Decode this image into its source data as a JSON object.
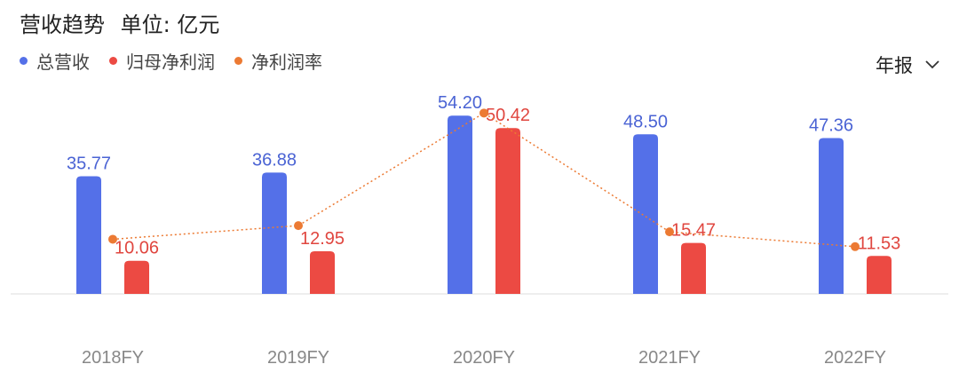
{
  "header": {
    "title": "营收趋势",
    "unit_label": "单位: 亿元"
  },
  "period_selector": {
    "label": "年报"
  },
  "colors": {
    "revenue": "#5470e8",
    "net_profit": "#ec4a43",
    "margin": "#ec7a33",
    "label_revenue": "#4a63d4",
    "label_profit": "#e0463f",
    "axis": "#dddddd",
    "tick": "#888888"
  },
  "chart_data": {
    "type": "bar",
    "categories": [
      "2018FY",
      "2019FY",
      "2020FY",
      "2021FY",
      "2022FY"
    ],
    "series": [
      {
        "name": "总营收",
        "type": "bar",
        "values": [
          35.77,
          36.88,
          54.2,
          48.5,
          47.36
        ],
        "labels": [
          "35.77",
          "36.88",
          "54.20",
          "48.50",
          "47.36"
        ]
      },
      {
        "name": "归母净利润",
        "type": "bar",
        "values": [
          10.06,
          12.95,
          50.42,
          15.47,
          11.53
        ],
        "labels": [
          "10.06",
          "12.95",
          "50.42",
          "15.47",
          "11.53"
        ]
      },
      {
        "name": "净利润率",
        "type": "line",
        "values": [
          28.1,
          35.1,
          93.0,
          31.9,
          24.3
        ]
      }
    ],
    "ylim": [
      0,
      60
    ],
    "line_ylim": [
      0,
      110
    ],
    "grid": false,
    "legend": "top-left"
  }
}
